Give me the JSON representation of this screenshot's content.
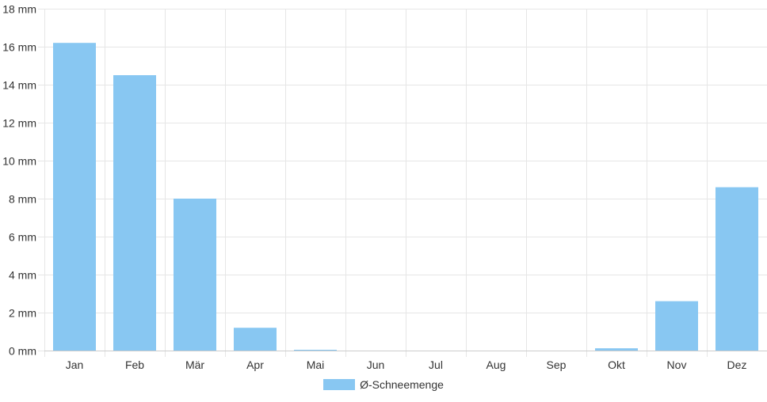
{
  "colors": {
    "bar": "#88c7f2",
    "grid": "#e6e6e6",
    "axis": "#cccccc",
    "text": "#333333"
  },
  "legend": {
    "label": "Ø-Schneemenge",
    "placement": "bottom-center"
  },
  "chart_data": {
    "type": "bar",
    "title": "",
    "xlabel": "",
    "ylabel": "",
    "ylim": [
      0,
      18
    ],
    "y_ticks": [
      0,
      2,
      4,
      6,
      8,
      10,
      12,
      14,
      16,
      18
    ],
    "y_tick_labels": [
      "0 mm",
      "2 mm",
      "4 mm",
      "6 mm",
      "8 mm",
      "10 mm",
      "12 mm",
      "14 mm",
      "16 mm",
      "18 mm"
    ],
    "grid": true,
    "categories": [
      "Jan",
      "Feb",
      "Mär",
      "Apr",
      "Mai",
      "Jun",
      "Jul",
      "Aug",
      "Sep",
      "Okt",
      "Nov",
      "Dez"
    ],
    "series": [
      {
        "name": "Ø-Schneemenge",
        "values": [
          16.2,
          14.5,
          8.0,
          1.2,
          0.02,
          0,
          0,
          0,
          0,
          0.12,
          2.6,
          8.6
        ]
      }
    ]
  }
}
